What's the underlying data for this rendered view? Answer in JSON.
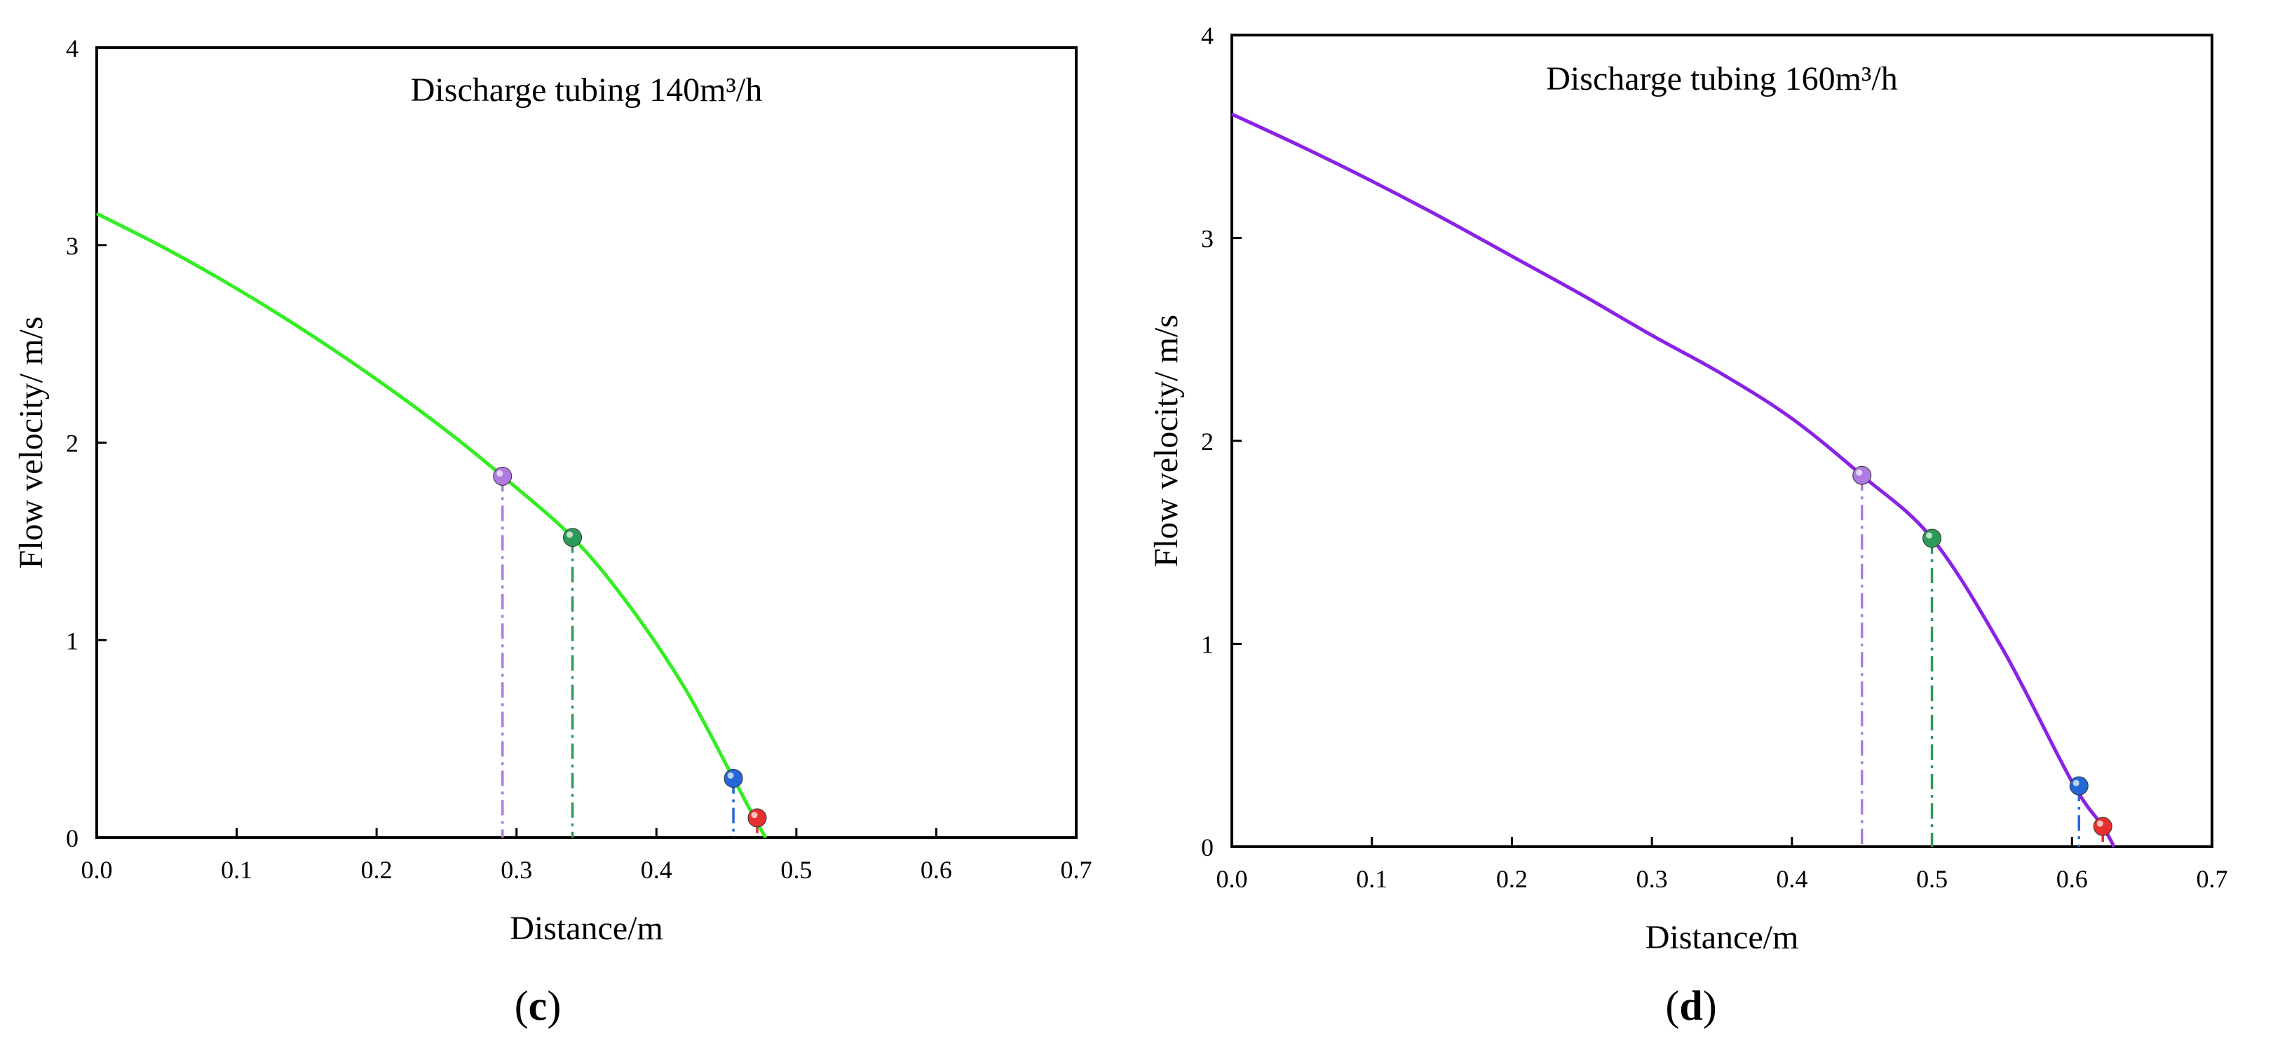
{
  "chart_data": [
    {
      "type": "line",
      "panel": "c",
      "title": "Discharge tubing 140m³/h",
      "xlabel": "Distance/m",
      "ylabel": "Flow velocity/ m/s",
      "xlim": [
        0,
        0.7
      ],
      "ylim": [
        0,
        4
      ],
      "xticks": [
        "0.0",
        "0.1",
        "0.2",
        "0.3",
        "0.4",
        "0.5",
        "0.6",
        "0.7"
      ],
      "yticks": [
        "0",
        "1",
        "2",
        "3",
        "4"
      ],
      "grid": false,
      "series": [
        {
          "name": "Discharge tubing 140m³/h",
          "color": "#33ee22",
          "x": [
            0,
            0.05,
            0.1,
            0.15,
            0.2,
            0.25,
            0.29,
            0.34,
            0.38,
            0.42,
            0.455,
            0.47,
            0.478
          ],
          "y": [
            3.16,
            2.98,
            2.78,
            2.56,
            2.32,
            2.06,
            1.83,
            1.52,
            1.18,
            0.76,
            0.3,
            0.1,
            0.0
          ]
        }
      ],
      "markers": [
        {
          "x": 0.29,
          "y": 1.83,
          "color": "#b07be0",
          "dropline_color": "#b07be0"
        },
        {
          "x": 0.34,
          "y": 1.52,
          "color": "#2e9a5a",
          "dropline_color": "#2e9a5a"
        },
        {
          "x": 0.455,
          "y": 0.3,
          "color": "#2468d8",
          "dropline_color": "#2468d8"
        },
        {
          "x": 0.472,
          "y": 0.1,
          "color": "#e63030",
          "dropline_color": "#e63030"
        }
      ]
    },
    {
      "type": "line",
      "panel": "d",
      "title": "Discharge tubing 160m³/h",
      "xlabel": "Distance/m",
      "ylabel": "Flow velocity/ m/s",
      "xlim": [
        0,
        0.7
      ],
      "ylim": [
        0,
        4
      ],
      "xticks": [
        "0.0",
        "0.1",
        "0.2",
        "0.3",
        "0.4",
        "0.5",
        "0.6",
        "0.7"
      ],
      "yticks": [
        "0",
        "1",
        "2",
        "3",
        "4"
      ],
      "grid": false,
      "series": [
        {
          "name": "Discharge tubing 160m³/h",
          "color": "#8a22e6",
          "x": [
            0,
            0.05,
            0.1,
            0.15,
            0.2,
            0.25,
            0.3,
            0.35,
            0.4,
            0.45,
            0.5,
            0.55,
            0.6,
            0.622,
            0.63
          ],
          "y": [
            3.61,
            3.45,
            3.28,
            3.1,
            2.91,
            2.72,
            2.52,
            2.33,
            2.11,
            1.83,
            1.52,
            0.98,
            0.32,
            0.1,
            0.0
          ]
        }
      ],
      "markers": [
        {
          "x": 0.45,
          "y": 1.83,
          "color": "#b07be0",
          "dropline_color": "#b07be0"
        },
        {
          "x": 0.5,
          "y": 1.52,
          "color": "#2e9a5a",
          "dropline_color": "#2e9a5a"
        },
        {
          "x": 0.605,
          "y": 0.3,
          "color": "#2468d8",
          "dropline_color": "#2468d8"
        },
        {
          "x": 0.622,
          "y": 0.1,
          "color": "#e63030",
          "dropline_color": "#e63030"
        }
      ]
    }
  ],
  "panel_labels": [
    "(c)",
    "(d)"
  ]
}
